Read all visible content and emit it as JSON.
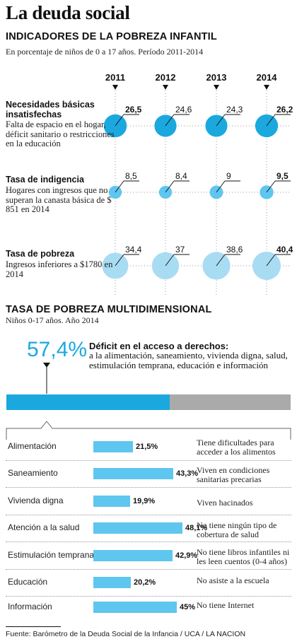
{
  "title": "La deuda social",
  "section1": {
    "title": "INDICADORES DE LA POBREZA INFANTIL",
    "subtitle": "En porcentaje de niños de 0 a 17 años. Período 2011-2014"
  },
  "section2": {
    "title": "TASA DE POBREZA MULTIDIMENSIONAL",
    "subtitle": "Niños 0-17 años. Año 2014",
    "headline_value": "57,4%",
    "headline_title": "Déficit en el acceso a derechos:",
    "headline_desc": "a la alimentación, saneamiento, vivienda digna, salud, estimulación temprana, educación e información"
  },
  "indicators": [
    {
      "title": "Necesidades básicas insatisfechas",
      "desc": "Falta de espacio en el hogar, déficit sanitario o restricciones en la educación"
    },
    {
      "title": "Tasa de indigencia",
      "desc": "Hogares con ingresos que no superan la canasta básica de $ 851 en 2014"
    },
    {
      "title": "Tasa de pobreza",
      "desc": "Ingresos inferiores a $1780 en 2014"
    }
  ],
  "rows": [
    {
      "label": "Alimentación",
      "value": "21,5%",
      "note": "Tiene dificultades para acceder a los alimentos"
    },
    {
      "label": "Saneamiento",
      "value": "43,3%",
      "note": "Viven en condiciones sanitarias precarias"
    },
    {
      "label": "Vivienda digna",
      "value": "19,9%",
      "note": "Viven hacinados"
    },
    {
      "label": "Atención a la salud",
      "value": "48,1%",
      "note": "No tiene ningún tipo de cobertura de salud"
    },
    {
      "label": "Estimulación temprana",
      "value": "42,9%",
      "note": "No tiene libros infantiles ni les leen cuentos (0-4 años)"
    },
    {
      "label": "Educación",
      "value": "20,2%",
      "note": "No asiste a la escuela"
    },
    {
      "label": "Información",
      "value": "45%",
      "note": "No tiene Internet"
    }
  ],
  "source": "Fuente: Barómetro de la Deuda Social de la Infancia / UCA / LA NACION",
  "colors": {
    "dark_blue": "#1aa8df",
    "mid_blue": "#5fc6ef",
    "light_blue": "#a8dcf3",
    "gray": "#aaaaaa"
  },
  "chart_data": [
    {
      "type": "scatter",
      "title": "INDICADORES DE LA POBREZA INFANTIL",
      "subtitle": "En porcentaje de niños de 0 a 17 años. Período 2011-2014",
      "categories": [
        "2011",
        "2012",
        "2013",
        "2014"
      ],
      "series": [
        {
          "name": "Necesidades básicas insatisfechas",
          "values": [
            26.5,
            24.6,
            24.3,
            26.2
          ],
          "labels": [
            "26,5",
            "24,6",
            "24,3",
            "26,2"
          ],
          "bold": [
            0,
            3
          ]
        },
        {
          "name": "Tasa de indigencia",
          "values": [
            8.5,
            8.4,
            9,
            9.5
          ],
          "labels": [
            "8,5",
            "8,4",
            "9",
            "9,5"
          ],
          "bold": [
            3
          ]
        },
        {
          "name": "Tasa de pobreza",
          "values": [
            34.4,
            37,
            38.6,
            40.4
          ],
          "labels": [
            "34,4",
            "37",
            "38,6",
            "40,4"
          ],
          "bold": [
            3
          ]
        }
      ]
    },
    {
      "type": "bar",
      "title": "TASA DE POBREZA MULTIDIMENSIONAL",
      "total": 57.4,
      "categories": [
        "Alimentación",
        "Saneamiento",
        "Vivienda digna",
        "Atención a la salud",
        "Estimulación temprana",
        "Educación",
        "Información"
      ],
      "values": [
        21.5,
        43.3,
        19.9,
        48.1,
        42.9,
        20.2,
        45
      ]
    }
  ]
}
